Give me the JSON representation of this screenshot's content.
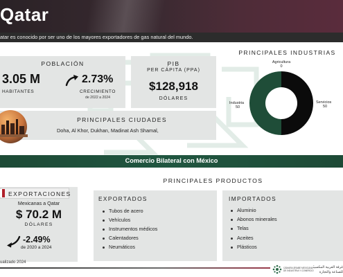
{
  "header": {
    "title": "Qatar",
    "subtitle": "atar es conocido por ser uno de los mayores exportadores de gas natural del mundo."
  },
  "poblacion": {
    "label": "POBLACIÓN",
    "value": "3.05 M",
    "unit": "HABITANTES",
    "growth": "2.73%",
    "growth_label": "CRECIMIENTO",
    "growth_period": "de 2022 a 2024"
  },
  "pib": {
    "label_line1": "PIB",
    "label_line2": "PER CÁPITA (PPA)",
    "value": "$128,918",
    "unit": "DÓLARES"
  },
  "industrias": {
    "title": "PRINCIPALES INDUSTRIAS",
    "colors": {
      "servicios": "#0b0b0b",
      "industria": "#1f4d38"
    }
  },
  "chart_data": {
    "type": "pie",
    "categories": [
      "Agricultura",
      "Servicios",
      "Industria"
    ],
    "values": [
      0,
      50,
      50
    ],
    "value_labels": [
      "0",
      "50",
      "50"
    ],
    "title": "PRINCIPALES INDUSTRIAS"
  },
  "ciudades": {
    "title": "PRINCIPALES CIUDADES",
    "list": "Doha, Al Khor, Dukhan, Madinat Ash Shamal,"
  },
  "comercio": {
    "title": "Comercio Bilateral con México"
  },
  "exportaciones": {
    "title": "EXPORTACIONES",
    "subtitle": "Mexicanas a Qatar",
    "value": "$ 70.2 M",
    "unit": "DÓLARES",
    "change": "-2.49%",
    "period": "de 2020 a 2024"
  },
  "productos": {
    "title": "PRINCIPALES PRODUCTOS",
    "exportados": {
      "title": "EXPORTADOS",
      "items": [
        "Tubos de acero",
        "Vehículos",
        "Instrumentos médicos",
        "Calentadores",
        "Neumáticos"
      ]
    },
    "importados": {
      "title": "IMPORTADOS",
      "items": [
        "Aluminio",
        "Abonos minerales",
        "Telas",
        "Aceites",
        "Plásticos"
      ]
    }
  },
  "footer": {
    "updated": "ualizado 2024",
    "logo_text_line1": "CÁMARA ÁRABE MEXICANA",
    "logo_text_line2": "DE INDUSTRIA Y COMERCIO",
    "logo_arabic_line1": "غرفة العربية المكسيكية",
    "logo_arabic_line2": "للصناعة والتجارة"
  }
}
